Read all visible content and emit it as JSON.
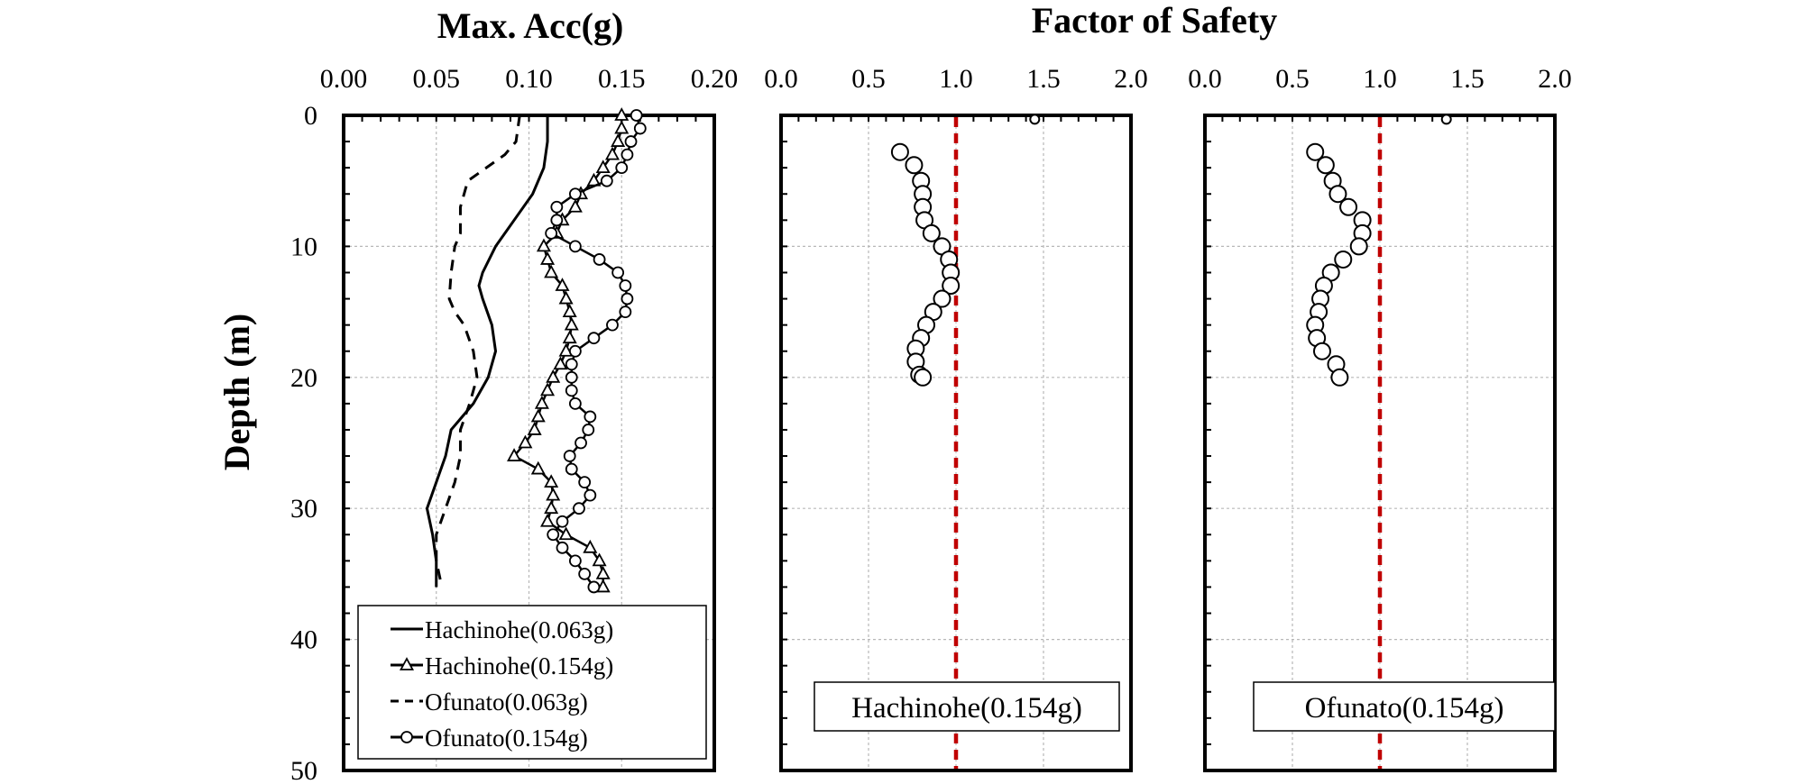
{
  "figure": {
    "acc_title": "Max. Acc(g)",
    "fs_title": "Factor of Safety",
    "ylabel": "Depth (m)"
  },
  "chart_data": [
    {
      "type": "line",
      "id": "acc",
      "title": "Max. Acc(g)",
      "xlabel": "",
      "ylabel": "Depth (m)",
      "xlim": [
        0.0,
        0.2
      ],
      "ylim": [
        0,
        50
      ],
      "y_inverted": true,
      "x_axis_position": "top",
      "x_ticks": [
        "0.00",
        "0.05",
        "0.10",
        "0.15",
        "0.20"
      ],
      "y_ticks": [
        "0",
        "10",
        "20",
        "30",
        "40",
        "50"
      ],
      "grid": true,
      "legend_placement": "bottom-left",
      "series": [
        {
          "name": "Hachinohe(0.063g)",
          "style": "solid",
          "marker": "none",
          "points": [
            [
              0.11,
              0
            ],
            [
              0.11,
              2
            ],
            [
              0.108,
              4
            ],
            [
              0.102,
              6
            ],
            [
              0.092,
              8
            ],
            [
              0.082,
              10
            ],
            [
              0.075,
              12
            ],
            [
              0.073,
              13
            ],
            [
              0.075,
              14
            ],
            [
              0.08,
              16
            ],
            [
              0.082,
              18
            ],
            [
              0.078,
              20
            ],
            [
              0.07,
              22
            ],
            [
              0.058,
              24
            ],
            [
              0.055,
              26
            ],
            [
              0.05,
              28
            ],
            [
              0.045,
              30
            ],
            [
              0.048,
              32
            ],
            [
              0.05,
              34
            ],
            [
              0.05,
              36
            ]
          ]
        },
        {
          "name": "Hachinohe(0.154g)",
          "style": "solid",
          "marker": "triangle",
          "points": [
            [
              0.15,
              0
            ],
            [
              0.15,
              1
            ],
            [
              0.148,
              2
            ],
            [
              0.145,
              3
            ],
            [
              0.14,
              4
            ],
            [
              0.135,
              5
            ],
            [
              0.128,
              6
            ],
            [
              0.125,
              7
            ],
            [
              0.118,
              8
            ],
            [
              0.115,
              9
            ],
            [
              0.108,
              10
            ],
            [
              0.11,
              11
            ],
            [
              0.112,
              12
            ],
            [
              0.118,
              13
            ],
            [
              0.12,
              14
            ],
            [
              0.122,
              15
            ],
            [
              0.123,
              16
            ],
            [
              0.122,
              17
            ],
            [
              0.12,
              18
            ],
            [
              0.117,
              19
            ],
            [
              0.113,
              20
            ],
            [
              0.11,
              21
            ],
            [
              0.107,
              22
            ],
            [
              0.105,
              23
            ],
            [
              0.103,
              24
            ],
            [
              0.098,
              25
            ],
            [
              0.092,
              26
            ],
            [
              0.105,
              27
            ],
            [
              0.112,
              28
            ],
            [
              0.113,
              29
            ],
            [
              0.112,
              30
            ],
            [
              0.11,
              31
            ],
            [
              0.12,
              32
            ],
            [
              0.133,
              33
            ],
            [
              0.138,
              34
            ],
            [
              0.14,
              35
            ],
            [
              0.14,
              36
            ]
          ]
        },
        {
          "name": "Ofunato(0.063g)",
          "style": "dashed",
          "marker": "none",
          "points": [
            [
              0.095,
              0
            ],
            [
              0.093,
              2
            ],
            [
              0.087,
              3
            ],
            [
              0.077,
              4
            ],
            [
              0.067,
              5
            ],
            [
              0.063,
              7
            ],
            [
              0.063,
              9
            ],
            [
              0.06,
              10
            ],
            [
              0.058,
              12
            ],
            [
              0.057,
              14
            ],
            [
              0.06,
              15
            ],
            [
              0.065,
              16
            ],
            [
              0.07,
              18
            ],
            [
              0.072,
              20
            ],
            [
              0.068,
              22
            ],
            [
              0.063,
              24
            ],
            [
              0.063,
              26
            ],
            [
              0.06,
              28
            ],
            [
              0.055,
              30
            ],
            [
              0.05,
              32
            ],
            [
              0.05,
              34
            ],
            [
              0.053,
              36
            ]
          ]
        },
        {
          "name": "Ofunato(0.154g)",
          "style": "solid",
          "marker": "circle",
          "points": [
            [
              0.158,
              0
            ],
            [
              0.16,
              1
            ],
            [
              0.155,
              2
            ],
            [
              0.153,
              3
            ],
            [
              0.15,
              4
            ],
            [
              0.142,
              5
            ],
            [
              0.125,
              6
            ],
            [
              0.115,
              7
            ],
            [
              0.115,
              8
            ],
            [
              0.112,
              9
            ],
            [
              0.125,
              10
            ],
            [
              0.138,
              11
            ],
            [
              0.148,
              12
            ],
            [
              0.152,
              13
            ],
            [
              0.153,
              14
            ],
            [
              0.152,
              15
            ],
            [
              0.145,
              16
            ],
            [
              0.135,
              17
            ],
            [
              0.125,
              18
            ],
            [
              0.123,
              19
            ],
            [
              0.123,
              20
            ],
            [
              0.123,
              21
            ],
            [
              0.125,
              22
            ],
            [
              0.133,
              23
            ],
            [
              0.132,
              24
            ],
            [
              0.128,
              25
            ],
            [
              0.122,
              26
            ],
            [
              0.123,
              27
            ],
            [
              0.13,
              28
            ],
            [
              0.133,
              29
            ],
            [
              0.127,
              30
            ],
            [
              0.118,
              31
            ],
            [
              0.113,
              32
            ],
            [
              0.118,
              33
            ],
            [
              0.125,
              34
            ],
            [
              0.13,
              35
            ],
            [
              0.135,
              36
            ]
          ]
        }
      ]
    },
    {
      "type": "scatter",
      "id": "fs_hachinohe",
      "title": "Factor of Safety",
      "annotation": "Hachinohe(0.154g)",
      "xlim": [
        0.0,
        2.0
      ],
      "ylim": [
        0,
        50
      ],
      "y_inverted": true,
      "x_axis_position": "top",
      "x_ticks": [
        "0.0",
        "0.5",
        "1.0",
        "1.5",
        "2.0"
      ],
      "grid": true,
      "reference_line": {
        "x": 1.0,
        "color": "#c00000",
        "style": "dashed"
      },
      "points": [
        [
          1.45,
          0.3
        ],
        [
          0.68,
          2.8
        ],
        [
          0.76,
          3.8
        ],
        [
          0.8,
          5
        ],
        [
          0.81,
          6
        ],
        [
          0.81,
          7
        ],
        [
          0.82,
          8
        ],
        [
          0.86,
          9
        ],
        [
          0.92,
          10
        ],
        [
          0.96,
          11
        ],
        [
          0.97,
          12
        ],
        [
          0.97,
          13
        ],
        [
          0.92,
          14
        ],
        [
          0.87,
          15
        ],
        [
          0.83,
          16
        ],
        [
          0.8,
          17
        ],
        [
          0.77,
          17.8
        ],
        [
          0.77,
          18.8
        ],
        [
          0.79,
          19.8
        ],
        [
          0.81,
          20
        ]
      ]
    },
    {
      "type": "scatter",
      "id": "fs_ofunato",
      "title": "Factor of Safety",
      "annotation": "Ofunato(0.154g)",
      "xlim": [
        0.0,
        2.0
      ],
      "ylim": [
        0,
        50
      ],
      "y_inverted": true,
      "x_axis_position": "top",
      "x_ticks": [
        "0.0",
        "0.5",
        "1.0",
        "1.5",
        "2.0"
      ],
      "grid": true,
      "reference_line": {
        "x": 1.0,
        "color": "#c00000",
        "style": "dashed"
      },
      "points": [
        [
          1.38,
          0.3
        ],
        [
          0.63,
          2.8
        ],
        [
          0.69,
          3.8
        ],
        [
          0.73,
          5
        ],
        [
          0.76,
          6
        ],
        [
          0.82,
          7
        ],
        [
          0.9,
          8
        ],
        [
          0.9,
          9
        ],
        [
          0.88,
          10
        ],
        [
          0.79,
          11
        ],
        [
          0.72,
          12
        ],
        [
          0.68,
          13
        ],
        [
          0.66,
          14
        ],
        [
          0.65,
          15
        ],
        [
          0.63,
          16
        ],
        [
          0.64,
          17
        ],
        [
          0.67,
          18
        ],
        [
          0.75,
          19
        ],
        [
          0.77,
          20
        ]
      ]
    }
  ]
}
